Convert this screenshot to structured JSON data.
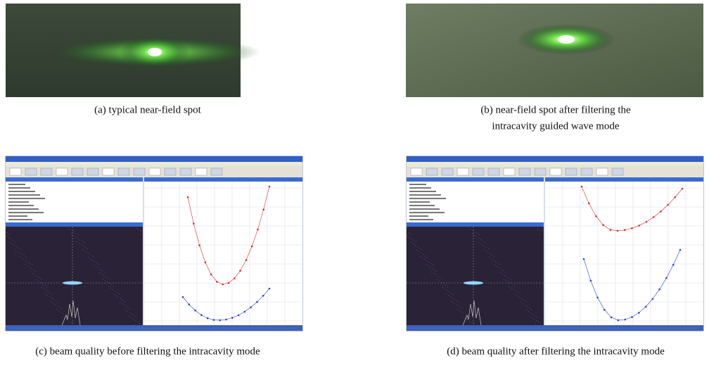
{
  "panels": [
    {
      "caption": "(a) typical near-field spot"
    },
    {
      "caption_lines": [
        "(b) near-field spot after filtering the",
        "intracavity guided wave mode"
      ]
    },
    {
      "caption": "(c) beam quality before filtering the intracavity mode"
    },
    {
      "caption": "(d) beam quality after filtering the intracavity mode"
    }
  ]
}
